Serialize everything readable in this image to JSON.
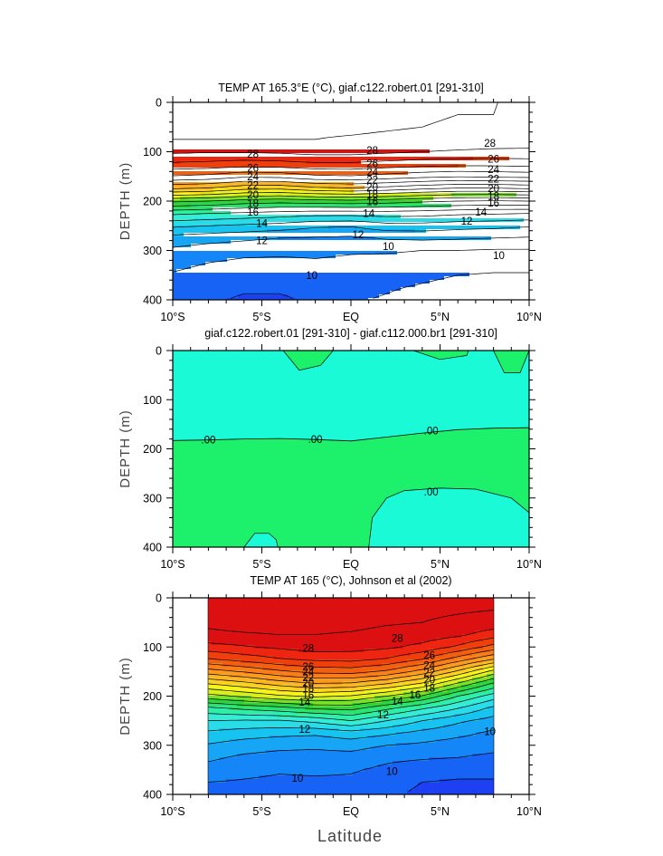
{
  "figure": {
    "xlabel": "Latitude"
  },
  "colors": {
    "temperature_fill": [
      "#1d40f2",
      "#1763f5",
      "#1586f7",
      "#17a6f5",
      "#17c4f0",
      "#2adce8",
      "#35ecd6",
      "#2fefa8",
      "#2be36e",
      "#2fd43c",
      "#78e12b",
      "#d6ef1f",
      "#f7f31d",
      "#fad21f",
      "#fbb525",
      "#fb9a1f",
      "#f97e1a",
      "#f25f10",
      "#ee3f0c",
      "#ee2510",
      "#dc1010"
    ],
    "difference_fill": {
      "positive": "#1df06a",
      "negative": "#1afad7"
    },
    "line": "#000000",
    "background": "#ffffff"
  },
  "chart_data": [
    {
      "type": "heatmap",
      "subtype": "filled-contour",
      "title": "TEMP AT 165.3°E (°C), giaf.c122.robert.01 [291-310]",
      "xlabel": "",
      "ylabel": "DEPTH (m)",
      "xlim": [
        -10,
        10
      ],
      "ylim": [
        400,
        0
      ],
      "x_ticks": [
        -10,
        -5,
        0,
        5,
        10
      ],
      "x_tick_labels": [
        "10°S",
        "5°S",
        "EQ",
        "5°N",
        "10°N"
      ],
      "y_ticks": [
        0,
        100,
        200,
        300,
        400
      ],
      "y_tick_labels": [
        "0",
        "100",
        "200",
        "300",
        "400"
      ],
      "contour_interval": 1,
      "levels_range": [
        9,
        29
      ],
      "x": [
        -10,
        -8,
        -6,
        -4,
        -2,
        0,
        2,
        4,
        6,
        8,
        10
      ],
      "depth": [
        0,
        25,
        50,
        75,
        100,
        125,
        150,
        175,
        200,
        225,
        250,
        275,
        300,
        325,
        350,
        375,
        400
      ],
      "z": [
        [
          29.6,
          29.6,
          29.6,
          29.6,
          29.5,
          29.4,
          29.3,
          29.2,
          29.1,
          29.0,
          29.0
        ],
        [
          29.5,
          29.5,
          29.5,
          29.5,
          29.4,
          29.3,
          29.2,
          29.1,
          29.0,
          29.0,
          28.9
        ],
        [
          29.4,
          29.4,
          29.4,
          29.3,
          29.2,
          29.2,
          29.1,
          29.0,
          28.9,
          28.9,
          28.8
        ],
        [
          29.0,
          29.0,
          29.0,
          29.0,
          29.0,
          28.9,
          28.8,
          28.7,
          28.6,
          28.6,
          28.5
        ],
        [
          28.2,
          28.1,
          28.1,
          28.2,
          28.4,
          28.4,
          28.2,
          28.0,
          27.9,
          27.8,
          27.8
        ],
        [
          26.8,
          26.7,
          26.5,
          26.6,
          26.8,
          26.8,
          26.6,
          26.4,
          26.3,
          26.3,
          26.4
        ],
        [
          24.9,
          24.7,
          24.2,
          24.3,
          24.8,
          24.9,
          24.6,
          24.3,
          24.1,
          24.2,
          24.3
        ],
        [
          22.0,
          21.8,
          21.2,
          21.1,
          21.6,
          21.8,
          21.5,
          21.1,
          20.8,
          20.8,
          21.0
        ],
        [
          18.2,
          18.0,
          17.6,
          17.4,
          17.6,
          17.7,
          17.5,
          17.2,
          17.0,
          16.9,
          17.0
        ],
        [
          15.2,
          15.0,
          14.8,
          14.6,
          14.4,
          14.4,
          14.5,
          14.4,
          14.2,
          14.1,
          14.0
        ],
        [
          13.2,
          13.0,
          12.8,
          12.6,
          12.2,
          12.1,
          12.6,
          12.6,
          12.4,
          12.3,
          12.1
        ],
        [
          11.6,
          11.4,
          11.2,
          11.0,
          10.9,
          10.8,
          11.1,
          11.2,
          11.1,
          11.0,
          10.9
        ],
        [
          10.8,
          10.5,
          10.3,
          10.2,
          10.2,
          10.1,
          10.1,
          10.0,
          10.0,
          9.9,
          9.9
        ],
        [
          10.3,
          10.0,
          9.8,
          9.8,
          9.9,
          9.8,
          9.7,
          9.6,
          9.5,
          9.4,
          9.4
        ],
        [
          9.9,
          9.6,
          9.4,
          9.4,
          9.5,
          9.5,
          9.4,
          9.2,
          9.0,
          8.9,
          8.9
        ],
        [
          9.6,
          9.3,
          9.1,
          9.1,
          9.3,
          9.3,
          9.1,
          8.9,
          8.7,
          8.6,
          8.6
        ],
        [
          9.3,
          9.1,
          8.9,
          8.9,
          9.1,
          9.1,
          8.9,
          8.6,
          8.4,
          8.3,
          8.3
        ]
      ],
      "contour_labels": [
        {
          "x": -5.5,
          "depth": 105,
          "text": "28"
        },
        {
          "x": 1.2,
          "depth": 97,
          "text": "28"
        },
        {
          "x": 7.8,
          "depth": 83,
          "text": "28"
        },
        {
          "x": -5.5,
          "depth": 133,
          "text": "26"
        },
        {
          "x": 1.2,
          "depth": 124,
          "text": "26"
        },
        {
          "x": 8.0,
          "depth": 115,
          "text": "26"
        },
        {
          "x": -5.5,
          "depth": 150,
          "text": "24"
        },
        {
          "x": 1.2,
          "depth": 141,
          "text": "24"
        },
        {
          "x": 8.0,
          "depth": 136,
          "text": "24"
        },
        {
          "x": -5.5,
          "depth": 168,
          "text": "22"
        },
        {
          "x": 1.2,
          "depth": 157,
          "text": "22"
        },
        {
          "x": 8.0,
          "depth": 155,
          "text": "22"
        },
        {
          "x": -5.5,
          "depth": 187,
          "text": "20"
        },
        {
          "x": 1.2,
          "depth": 172,
          "text": "20"
        },
        {
          "x": 8.0,
          "depth": 174,
          "text": "20"
        },
        {
          "x": -5.5,
          "depth": 205,
          "text": "18"
        },
        {
          "x": 1.2,
          "depth": 186,
          "text": "18"
        },
        {
          "x": 8.0,
          "depth": 190,
          "text": "18"
        },
        {
          "x": -5.5,
          "depth": 222,
          "text": "16"
        },
        {
          "x": 1.2,
          "depth": 201,
          "text": "16"
        },
        {
          "x": 8.0,
          "depth": 204,
          "text": "16"
        },
        {
          "x": -5.0,
          "depth": 245,
          "text": "14"
        },
        {
          "x": 1.0,
          "depth": 225,
          "text": "14"
        },
        {
          "x": 7.3,
          "depth": 222,
          "text": "14"
        },
        {
          "x": -5.0,
          "depth": 280,
          "text": "12"
        },
        {
          "x": 0.4,
          "depth": 268,
          "text": "12"
        },
        {
          "x": 6.5,
          "depth": 240,
          "text": "12"
        },
        {
          "x": 2.1,
          "depth": 292,
          "text": "10"
        },
        {
          "x": 8.3,
          "depth": 310,
          "text": "10"
        },
        {
          "x": -2.2,
          "depth": 350,
          "text": "10"
        }
      ]
    },
    {
      "type": "heatmap",
      "subtype": "filled-contour-difference",
      "title": "giaf.c122.robert.01 [291-310] - giaf.c112.000.br1 [291-310]",
      "xlabel": "",
      "ylabel": "DEPTH (m)",
      "xlim": [
        -10,
        10
      ],
      "ylim": [
        400,
        0
      ],
      "x_ticks": [
        -10,
        -5,
        0,
        5,
        10
      ],
      "x_tick_labels": [
        "10°S",
        "5°S",
        "EQ",
        "5°N",
        "10°N"
      ],
      "y_ticks": [
        0,
        100,
        200,
        300,
        400
      ],
      "y_tick_labels": [
        "0",
        "100",
        "200",
        "300",
        "400"
      ],
      "levels": [
        0.0
      ],
      "zero_line_depth": {
        "x": [
          -10,
          -8,
          -6,
          -4,
          -2,
          0,
          2,
          4,
          6,
          8,
          10
        ],
        "depth": [
          183,
          182,
          180,
          179,
          181,
          184,
          176,
          168,
          161,
          158,
          157
        ]
      },
      "negative_regions": [
        {
          "description": "bottom-right lobe",
          "x": [
            1.0,
            1.2,
            2.0,
            3.0,
            5.0,
            7.0,
            9.0,
            10.0,
            10.0,
            1.0
          ],
          "depth": [
            400,
            340,
            300,
            285,
            280,
            282,
            300,
            330,
            400,
            400
          ]
        },
        {
          "description": "bottom small lobe",
          "x": [
            -6.0,
            -5.4,
            -4.6,
            -4.2,
            -4.1,
            -6.0
          ],
          "depth": [
            400,
            372,
            372,
            385,
            400,
            400
          ]
        }
      ],
      "positive_patches_near_surface": [
        {
          "x": [
            -3.8,
            -2.9,
            -1.7,
            -1.0
          ],
          "depth": [
            0,
            40,
            30,
            0
          ]
        },
        {
          "x": [
            3.5,
            5.0,
            6.5,
            6.6
          ],
          "depth": [
            0,
            18,
            10,
            0
          ]
        },
        {
          "x": [
            8.0,
            8.6,
            9.5,
            10.0
          ],
          "depth": [
            0,
            45,
            45,
            0
          ]
        }
      ],
      "contour_labels": [
        {
          "x": -8.0,
          "depth": 182,
          "text": ".00"
        },
        {
          "x": -2.0,
          "depth": 181,
          "text": ".00"
        },
        {
          "x": 4.5,
          "depth": 163,
          "text": ".00"
        },
        {
          "x": 4.5,
          "depth": 288,
          "text": ".00"
        }
      ]
    },
    {
      "type": "heatmap",
      "subtype": "filled-contour",
      "title": "TEMP AT 165 (°C), Johnson et al (2002)",
      "xlabel": "Latitude",
      "ylabel": "DEPTH (m)",
      "xlim": [
        -10,
        10
      ],
      "ylim": [
        400,
        0
      ],
      "data_xlim": [
        -8,
        8
      ],
      "x_ticks": [
        -10,
        -5,
        0,
        5,
        10
      ],
      "x_tick_labels": [
        "10°S",
        "5°S",
        "EQ",
        "5°N",
        "10°N"
      ],
      "y_ticks": [
        0,
        100,
        200,
        300,
        400
      ],
      "y_tick_labels": [
        "0",
        "100",
        "200",
        "300",
        "400"
      ],
      "contour_interval": 1,
      "levels_range": [
        9,
        29
      ],
      "x": [
        -8,
        -6,
        -4,
        -2,
        0,
        2,
        4,
        6,
        8
      ],
      "depth": [
        0,
        25,
        50,
        75,
        100,
        125,
        150,
        175,
        200,
        225,
        250,
        275,
        300,
        325,
        350,
        375,
        400
      ],
      "z": [
        [
          29.6,
          29.6,
          29.6,
          29.6,
          29.6,
          29.4,
          29.3,
          29.2,
          29.1
        ],
        [
          29.5,
          29.5,
          29.5,
          29.5,
          29.5,
          29.3,
          29.2,
          29.1,
          29.0
        ],
        [
          29.2,
          29.4,
          29.4,
          29.3,
          29.3,
          29.1,
          29.0,
          28.8,
          28.6
        ],
        [
          28.8,
          28.9,
          29.0,
          29.0,
          28.9,
          28.7,
          28.6,
          28.2,
          27.5
        ],
        [
          27.6,
          27.9,
          28.2,
          28.5,
          28.4,
          28.2,
          27.7,
          26.8,
          25.6
        ],
        [
          25.9,
          26.4,
          26.9,
          27.2,
          27.3,
          26.9,
          26.0,
          24.5,
          23.0
        ],
        [
          23.5,
          24.1,
          24.8,
          25.3,
          25.4,
          24.8,
          23.6,
          21.8,
          19.6
        ],
        [
          21.0,
          21.6,
          22.4,
          22.9,
          22.8,
          22.0,
          20.8,
          18.8,
          16.8
        ],
        [
          18.6,
          19.2,
          19.8,
          20.2,
          19.9,
          19.0,
          17.9,
          16.0,
          14.5
        ],
        [
          15.7,
          16.2,
          16.6,
          17.1,
          17.3,
          16.2,
          15.1,
          14.0,
          12.7
        ],
        [
          14.0,
          13.9,
          13.9,
          14.3,
          15.0,
          14.0,
          13.0,
          12.2,
          11.6
        ],
        [
          12.8,
          12.5,
          12.3,
          12.2,
          12.6,
          12.2,
          11.7,
          11.3,
          10.8
        ],
        [
          11.9,
          11.5,
          11.3,
          11.2,
          11.4,
          11.0,
          10.8,
          10.5,
          10.3
        ],
        [
          11.2,
          10.8,
          10.6,
          10.6,
          10.6,
          10.2,
          10.1,
          10.0,
          9.8
        ],
        [
          10.6,
          10.3,
          10.1,
          10.2,
          10.1,
          9.8,
          9.5,
          9.3,
          9.3
        ],
        [
          10.0,
          9.9,
          9.8,
          9.8,
          9.8,
          9.6,
          9.0,
          8.9,
          8.9
        ],
        [
          9.7,
          9.6,
          9.5,
          9.5,
          9.5,
          9.3,
          8.7,
          8.6,
          8.6
        ]
      ],
      "contour_labels": [
        {
          "x": -2.4,
          "depth": 102,
          "text": "28"
        },
        {
          "x": 2.6,
          "depth": 82,
          "text": "28"
        },
        {
          "x": -2.4,
          "depth": 140,
          "text": "26"
        },
        {
          "x": 4.4,
          "depth": 117,
          "text": "26"
        },
        {
          "x": -2.4,
          "depth": 150,
          "text": "24"
        },
        {
          "x": 4.4,
          "depth": 137,
          "text": "24"
        },
        {
          "x": -2.4,
          "depth": 162,
          "text": "22"
        },
        {
          "x": 4.4,
          "depth": 152,
          "text": "22"
        },
        {
          "x": -2.4,
          "depth": 173,
          "text": "20"
        },
        {
          "x": 4.4,
          "depth": 167,
          "text": "20"
        },
        {
          "x": -2.4,
          "depth": 184,
          "text": "18"
        },
        {
          "x": 4.4,
          "depth": 183,
          "text": "18"
        },
        {
          "x": -2.4,
          "depth": 198,
          "text": "16"
        },
        {
          "x": 3.6,
          "depth": 197,
          "text": "16"
        },
        {
          "x": -2.6,
          "depth": 212,
          "text": "14"
        },
        {
          "x": 2.6,
          "depth": 210,
          "text": "14"
        },
        {
          "x": -2.6,
          "depth": 267,
          "text": "12"
        },
        {
          "x": 1.8,
          "depth": 238,
          "text": "12"
        },
        {
          "x": 7.8,
          "depth": 272,
          "text": "10"
        },
        {
          "x": -3.0,
          "depth": 367,
          "text": "10"
        },
        {
          "x": 2.3,
          "depth": 353,
          "text": "10"
        }
      ]
    }
  ]
}
